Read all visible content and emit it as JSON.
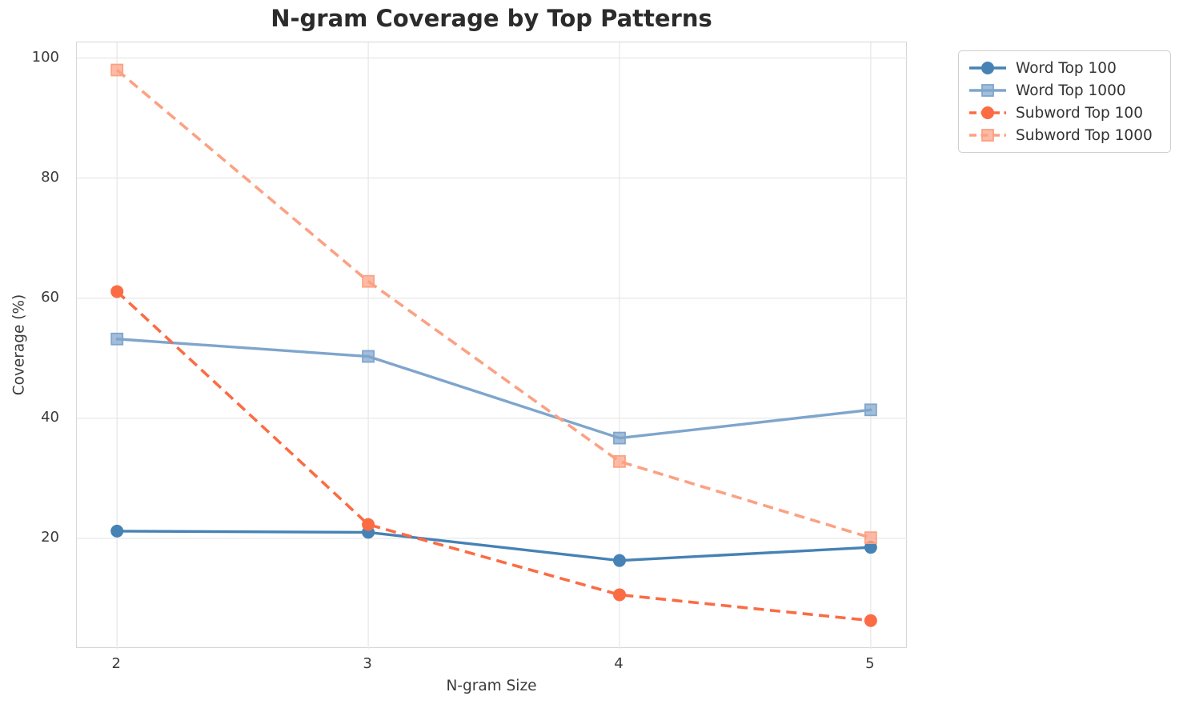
{
  "chart_data": {
    "type": "line",
    "title": "N-gram Coverage by Top Patterns",
    "xlabel": "N-gram Size",
    "ylabel": "Coverage (%)",
    "x": [
      2,
      3,
      4,
      5
    ],
    "xticks": [
      2,
      3,
      4,
      5
    ],
    "yticks": [
      20,
      40,
      60,
      80,
      100
    ],
    "xlim": [
      1.84,
      5.147
    ],
    "ylim": [
      1.6,
      102.6
    ],
    "grid": true,
    "legend_position": "outside-top-right",
    "series": [
      {
        "name": "Word Top 100",
        "values": [
          21.2,
          21.0,
          16.3,
          18.5
        ],
        "color": "#4682B4",
        "line_style": "solid",
        "marker": "circle"
      },
      {
        "name": "Word Top 1000",
        "values": [
          53.2,
          50.3,
          36.7,
          41.4
        ],
        "color": "#7FA5CC",
        "line_style": "solid",
        "marker": "square"
      },
      {
        "name": "Subword Top 100",
        "values": [
          61.1,
          22.3,
          10.6,
          6.3
        ],
        "color": "#FB6C44",
        "line_style": "dashed",
        "marker": "circle"
      },
      {
        "name": "Subword Top 1000",
        "values": [
          98.0,
          62.8,
          32.8,
          20.1
        ],
        "color": "#FCA183",
        "line_style": "dashed",
        "marker": "square"
      }
    ]
  }
}
